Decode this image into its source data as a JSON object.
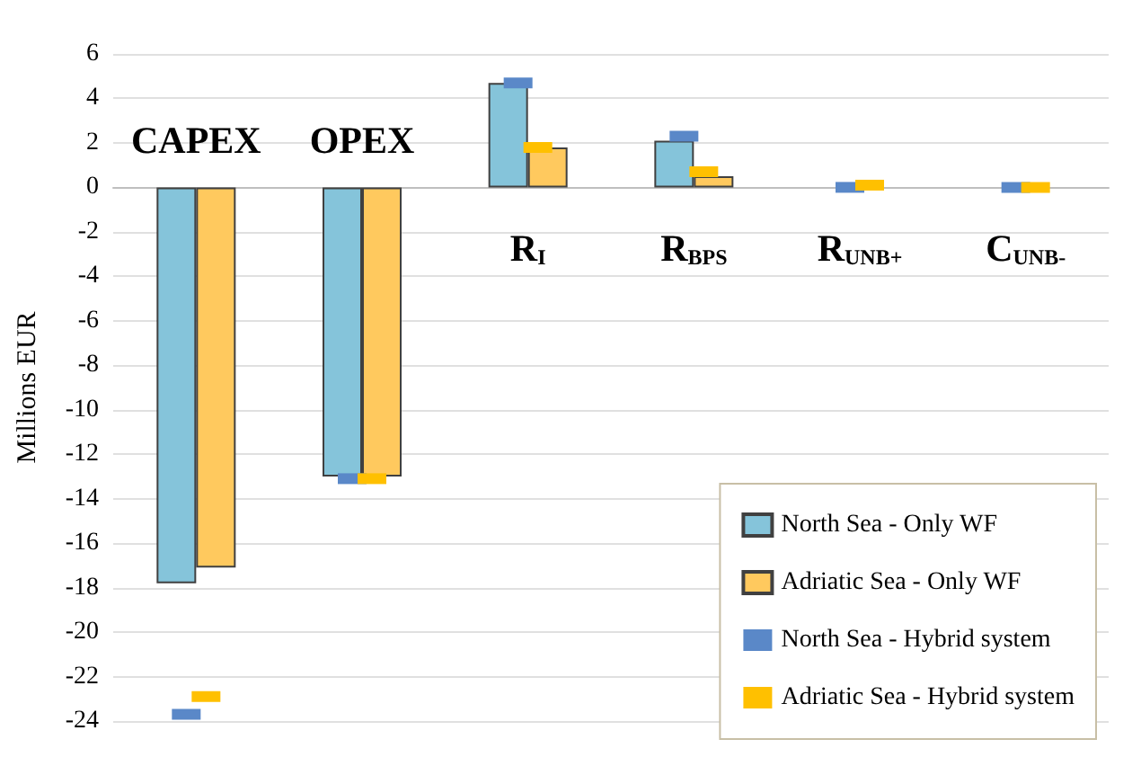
{
  "chart_data": {
    "type": "bar",
    "categories": [
      "CAPEX",
      "OPEX",
      "R$_{I}$",
      "R$_{BPS}$",
      "R$_{UNB+}$",
      "C$_{UNB-}$"
    ],
    "ylabel": "Millions EUR",
    "series": [
      {
        "name": "North Sea - Only WF",
        "color": "#85c4da",
        "values": [
          -17.8,
          -13.0,
          4.7,
          2.1,
          0,
          0
        ]
      },
      {
        "name": "Adriatic Sea - Only WF",
        "color": "#ffc95e",
        "values": [
          -17.1,
          -13.0,
          1.8,
          0.5,
          0,
          0
        ]
      },
      {
        "name": "North Sea - Hybrid system",
        "type": "scatter",
        "color": "#5a88c8",
        "values": [
          -23.7,
          -13.1,
          4.7,
          2.3,
          0,
          0
        ]
      },
      {
        "name": "Adriatic Sea - Hybrid system",
        "type": "scatter",
        "color": "#ffc000",
        "values": [
          -22.9,
          -13.1,
          1.8,
          0.7,
          0.1,
          0
        ]
      }
    ],
    "ylim": [
      -24,
      6
    ],
    "yticks": [
      -24,
      -22,
      -20,
      -18,
      -16,
      -14,
      -12,
      -10,
      -8,
      -6,
      -4,
      -2,
      0,
      2,
      4,
      6
    ],
    "grid": "y",
    "legend": "bottom right"
  }
}
